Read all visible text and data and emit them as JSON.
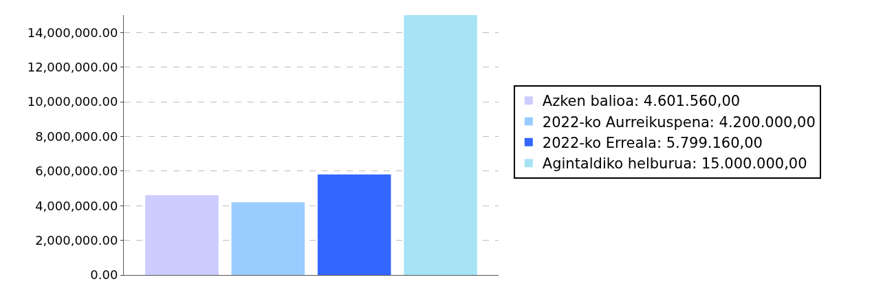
{
  "chart_data": {
    "type": "bar",
    "categories": [
      null
    ],
    "series": [
      {
        "name": "Azken balioa: 4.601.560,00",
        "color": "#ccccff",
        "values": [
          4601560
        ]
      },
      {
        "name": "2022-ko Aurreikuspena: 4.200.000,00",
        "color": "#99ccff",
        "values": [
          4200000
        ]
      },
      {
        "name": "2022-ko Erreala: 5.799.160,00",
        "color": "#3366ff",
        "values": [
          5799160
        ]
      },
      {
        "name": "Agintaldiko helburua: 15.000.000,00",
        "color": "#a6e3f5",
        "values": [
          15000000
        ]
      }
    ],
    "ylim": [
      0,
      15000000
    ],
    "yticks": [
      {
        "value": 0,
        "label": "0.00"
      },
      {
        "value": 2000000,
        "label": "2,000,000.00"
      },
      {
        "value": 4000000,
        "label": "4,000,000.00"
      },
      {
        "value": 6000000,
        "label": "6,000,000.00"
      },
      {
        "value": 8000000,
        "label": "8,000,000.00"
      },
      {
        "value": 10000000,
        "label": "10,000,000.00"
      },
      {
        "value": 12000000,
        "label": "12,000,000.00"
      },
      {
        "value": 14000000,
        "label": "14,000,000.00"
      }
    ],
    "grid": "y",
    "legend": "right",
    "tick_labels": "y"
  }
}
